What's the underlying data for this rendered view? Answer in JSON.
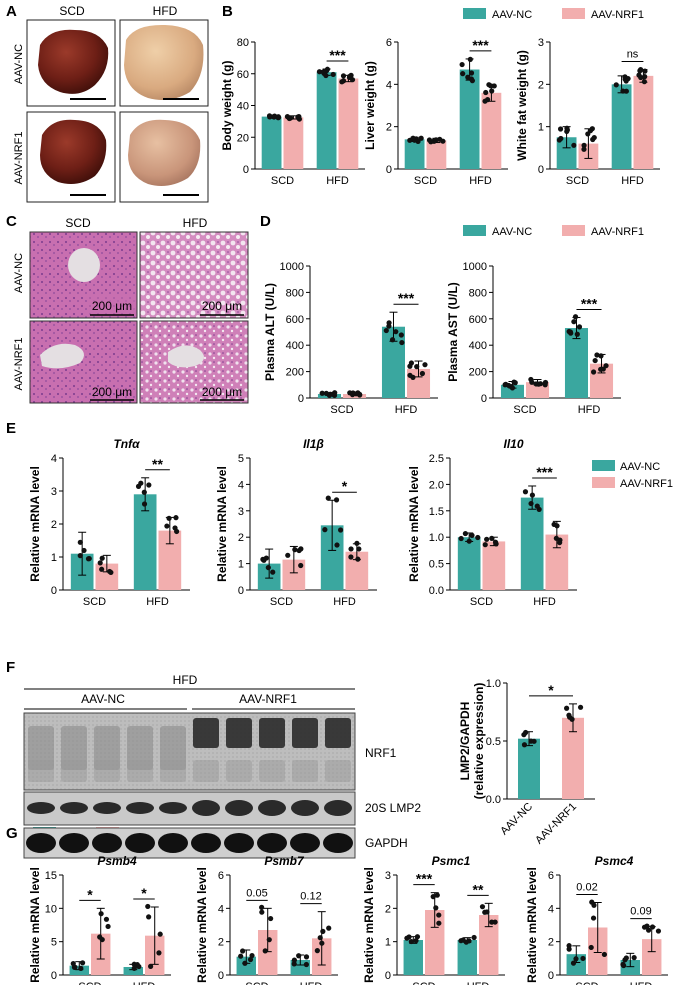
{
  "colors": {
    "nc": "#3aa79f",
    "nrf1": "#f2aeae",
    "dot": "#111111"
  },
  "legend": {
    "nc": "AAV-NC",
    "nrf1": "AAV-NRF1"
  },
  "panel_letters": {
    "A": "A",
    "B": "B",
    "C": "C",
    "D": "D",
    "E": "E",
    "F": "F",
    "G": "G"
  },
  "panelA": {
    "cols": [
      "SCD",
      "HFD"
    ],
    "rows": [
      "AAV-NC",
      "AAV-NRF1"
    ]
  },
  "panelC": {
    "cols": [
      "SCD",
      "HFD"
    ],
    "rows": [
      "AAV-NC",
      "AAV-NRF1"
    ],
    "scale_bar": "200 μm"
  },
  "panelF": {
    "group": "HFD",
    "lanes_left": "AAV-NC",
    "lanes_right": "AAV-NRF1",
    "bands": [
      "NRF1",
      "20S LMP2",
      "GAPDH"
    ]
  },
  "chart_data": [
    {
      "id": "B1",
      "type": "bar",
      "ylabel": "Body weight (g)",
      "ylim": [
        0,
        80
      ],
      "yticks": [
        0,
        20,
        40,
        60,
        80
      ],
      "categories": [
        "SCD",
        "HFD"
      ],
      "series": [
        {
          "name": "AAV-NC",
          "values": [
            33,
            61
          ],
          "err": [
            1,
            2
          ]
        },
        {
          "name": "AAV-NRF1",
          "values": [
            32.5,
            57
          ],
          "err": [
            1,
            2
          ]
        }
      ],
      "sig": [
        {
          "cat": 1,
          "text": "***"
        }
      ]
    },
    {
      "id": "B2",
      "type": "bar",
      "ylabel": "Liver weight (g)",
      "ylim": [
        0,
        6
      ],
      "yticks": [
        0,
        2,
        4,
        6
      ],
      "categories": [
        "SCD",
        "HFD"
      ],
      "series": [
        {
          "name": "AAV-NC",
          "values": [
            1.4,
            4.7
          ],
          "err": [
            0.1,
            0.5
          ]
        },
        {
          "name": "AAV-NRF1",
          "values": [
            1.35,
            3.6
          ],
          "err": [
            0.1,
            0.4
          ]
        }
      ],
      "sig": [
        {
          "cat": 1,
          "text": "***"
        }
      ]
    },
    {
      "id": "B3",
      "type": "bar",
      "ylabel": "White fat weight (g)",
      "ylim": [
        0,
        3
      ],
      "yticks": [
        0,
        1,
        2,
        3
      ],
      "categories": [
        "SCD",
        "HFD"
      ],
      "series": [
        {
          "name": "AAV-NC",
          "values": [
            0.75,
            2.0
          ],
          "err": [
            0.25,
            0.2
          ]
        },
        {
          "name": "AAV-NRF1",
          "values": [
            0.6,
            2.2
          ],
          "err": [
            0.35,
            0.15
          ]
        }
      ],
      "sig": [
        {
          "cat": 1,
          "text": "ns"
        }
      ]
    },
    {
      "id": "D1",
      "type": "bar",
      "ylabel": "Plasma ALT (U/L)",
      "ylim": [
        0,
        1000
      ],
      "yticks": [
        0,
        200,
        400,
        600,
        800,
        1000
      ],
      "categories": [
        "SCD",
        "HFD"
      ],
      "series": [
        {
          "name": "AAV-NC",
          "values": [
            30,
            540
          ],
          "err": [
            10,
            110
          ]
        },
        {
          "name": "AAV-NRF1",
          "values": [
            30,
            220
          ],
          "err": [
            10,
            60
          ]
        }
      ],
      "sig": [
        {
          "cat": 1,
          "text": "***"
        }
      ]
    },
    {
      "id": "D2",
      "type": "bar",
      "ylabel": "Plasma AST (U/L)",
      "ylim": [
        0,
        1000
      ],
      "yticks": [
        0,
        200,
        400,
        600,
        800,
        1000
      ],
      "categories": [
        "SCD",
        "HFD"
      ],
      "series": [
        {
          "name": "AAV-NC",
          "values": [
            100,
            530
          ],
          "err": [
            25,
            80
          ]
        },
        {
          "name": "AAV-NRF1",
          "values": [
            120,
            260
          ],
          "err": [
            20,
            70
          ]
        }
      ],
      "sig": [
        {
          "cat": 1,
          "text": "***"
        }
      ]
    },
    {
      "id": "E1",
      "type": "bar",
      "title": "Tnfα",
      "ylabel": "Relative mRNA level",
      "ylim": [
        0,
        4
      ],
      "yticks": [
        0,
        1,
        2,
        3,
        4
      ],
      "categories": [
        "SCD",
        "HFD"
      ],
      "series": [
        {
          "name": "AAV-NC",
          "values": [
            1.1,
            2.9
          ],
          "err": [
            0.65,
            0.5
          ]
        },
        {
          "name": "AAV-NRF1",
          "values": [
            0.8,
            1.8
          ],
          "err": [
            0.25,
            0.4
          ]
        }
      ],
      "sig": [
        {
          "cat": 1,
          "text": "**"
        }
      ]
    },
    {
      "id": "E2",
      "type": "bar",
      "title": "Il1β",
      "ylabel": "Relative mRNA level",
      "ylim": [
        0,
        5
      ],
      "yticks": [
        0,
        1,
        2,
        3,
        4,
        5
      ],
      "categories": [
        "SCD",
        "HFD"
      ],
      "series": [
        {
          "name": "AAV-NC",
          "values": [
            1.0,
            2.45
          ],
          "err": [
            0.55,
            0.95
          ]
        },
        {
          "name": "AAV-NRF1",
          "values": [
            1.15,
            1.45
          ],
          "err": [
            0.5,
            0.3
          ]
        }
      ],
      "sig": [
        {
          "cat": 1,
          "text": "*"
        }
      ]
    },
    {
      "id": "E3",
      "type": "bar",
      "title": "Il10",
      "ylabel": "Relative mRNA level",
      "ylim": [
        0,
        2.5
      ],
      "yticks": [
        0,
        0.5,
        1.0,
        1.5,
        2.0,
        2.5
      ],
      "categories": [
        "SCD",
        "HFD"
      ],
      "series": [
        {
          "name": "AAV-NC",
          "values": [
            1.0,
            1.75
          ],
          "err": [
            0.08,
            0.22
          ]
        },
        {
          "name": "AAV-NRF1",
          "values": [
            0.92,
            1.05
          ],
          "err": [
            0.08,
            0.25
          ]
        }
      ],
      "sig": [
        {
          "cat": 1,
          "text": "***"
        }
      ]
    },
    {
      "id": "F1",
      "type": "bar",
      "ylabel": "LMP2/GAPDH (relative expression)",
      "ylim": [
        0,
        1.0
      ],
      "yticks": [
        0,
        0.5,
        1.0
      ],
      "categories": [
        "AAV-NC",
        "AAV-NRF1"
      ],
      "series": [
        {
          "name": "value",
          "values": [
            0.52,
            0.7
          ],
          "err": [
            0.06,
            0.12
          ]
        }
      ],
      "sig": [
        {
          "cat": -1,
          "text": "*"
        }
      ]
    },
    {
      "id": "G1",
      "type": "bar",
      "title": "Psmb4",
      "ylabel": "Relative mRNA level",
      "ylim": [
        0,
        15
      ],
      "yticks": [
        0,
        5,
        10,
        15
      ],
      "categories": [
        "SCD",
        "HFD"
      ],
      "series": [
        {
          "name": "AAV-NC",
          "values": [
            1.4,
            1.2
          ],
          "err": [
            0.6,
            0.4
          ]
        },
        {
          "name": "AAV-NRF1",
          "values": [
            6.2,
            5.9
          ],
          "err": [
            3.8,
            4.3
          ]
        }
      ],
      "sig": [
        {
          "cat": 0,
          "text": "*"
        },
        {
          "cat": 1,
          "text": "*"
        }
      ]
    },
    {
      "id": "G2",
      "type": "bar",
      "title": "Psmb7",
      "ylabel": "Relative mRNA level",
      "ylim": [
        0,
        6
      ],
      "yticks": [
        0,
        2,
        4,
        6
      ],
      "categories": [
        "SCD",
        "HFD"
      ],
      "series": [
        {
          "name": "AAV-NC",
          "values": [
            1.1,
            0.9
          ],
          "err": [
            0.4,
            0.3
          ]
        },
        {
          "name": "AAV-NRF1",
          "values": [
            2.7,
            2.2
          ],
          "err": [
            1.3,
            1.6
          ]
        }
      ],
      "sig": [
        {
          "cat": 0,
          "text": "0.05"
        },
        {
          "cat": 1,
          "text": "0.12"
        }
      ]
    },
    {
      "id": "G3",
      "type": "bar",
      "title": "Psmc1",
      "ylabel": "Relative mRNA level",
      "ylim": [
        0,
        3
      ],
      "yticks": [
        0,
        1,
        2,
        3
      ],
      "categories": [
        "SCD",
        "HFD"
      ],
      "series": [
        {
          "name": "AAV-NC",
          "values": [
            1.05,
            1.05
          ],
          "err": [
            0.1,
            0.07
          ]
        },
        {
          "name": "AAV-NRF1",
          "values": [
            1.95,
            1.8
          ],
          "err": [
            0.52,
            0.35
          ]
        }
      ],
      "sig": [
        {
          "cat": 0,
          "text": "***"
        },
        {
          "cat": 1,
          "text": "**"
        }
      ]
    },
    {
      "id": "G4",
      "type": "bar",
      "title": "Psmc4",
      "ylabel": "Relative mRNA level",
      "ylim": [
        0,
        6
      ],
      "yticks": [
        0,
        2,
        4,
        6
      ],
      "categories": [
        "SCD",
        "HFD"
      ],
      "series": [
        {
          "name": "AAV-NC",
          "values": [
            1.25,
            0.9
          ],
          "err": [
            0.5,
            0.4
          ]
        },
        {
          "name": "AAV-NRF1",
          "values": [
            2.85,
            2.15
          ],
          "err": [
            1.5,
            0.75
          ]
        }
      ],
      "sig": [
        {
          "cat": 0,
          "text": "0.02"
        },
        {
          "cat": 1,
          "text": "0.09"
        }
      ]
    }
  ]
}
